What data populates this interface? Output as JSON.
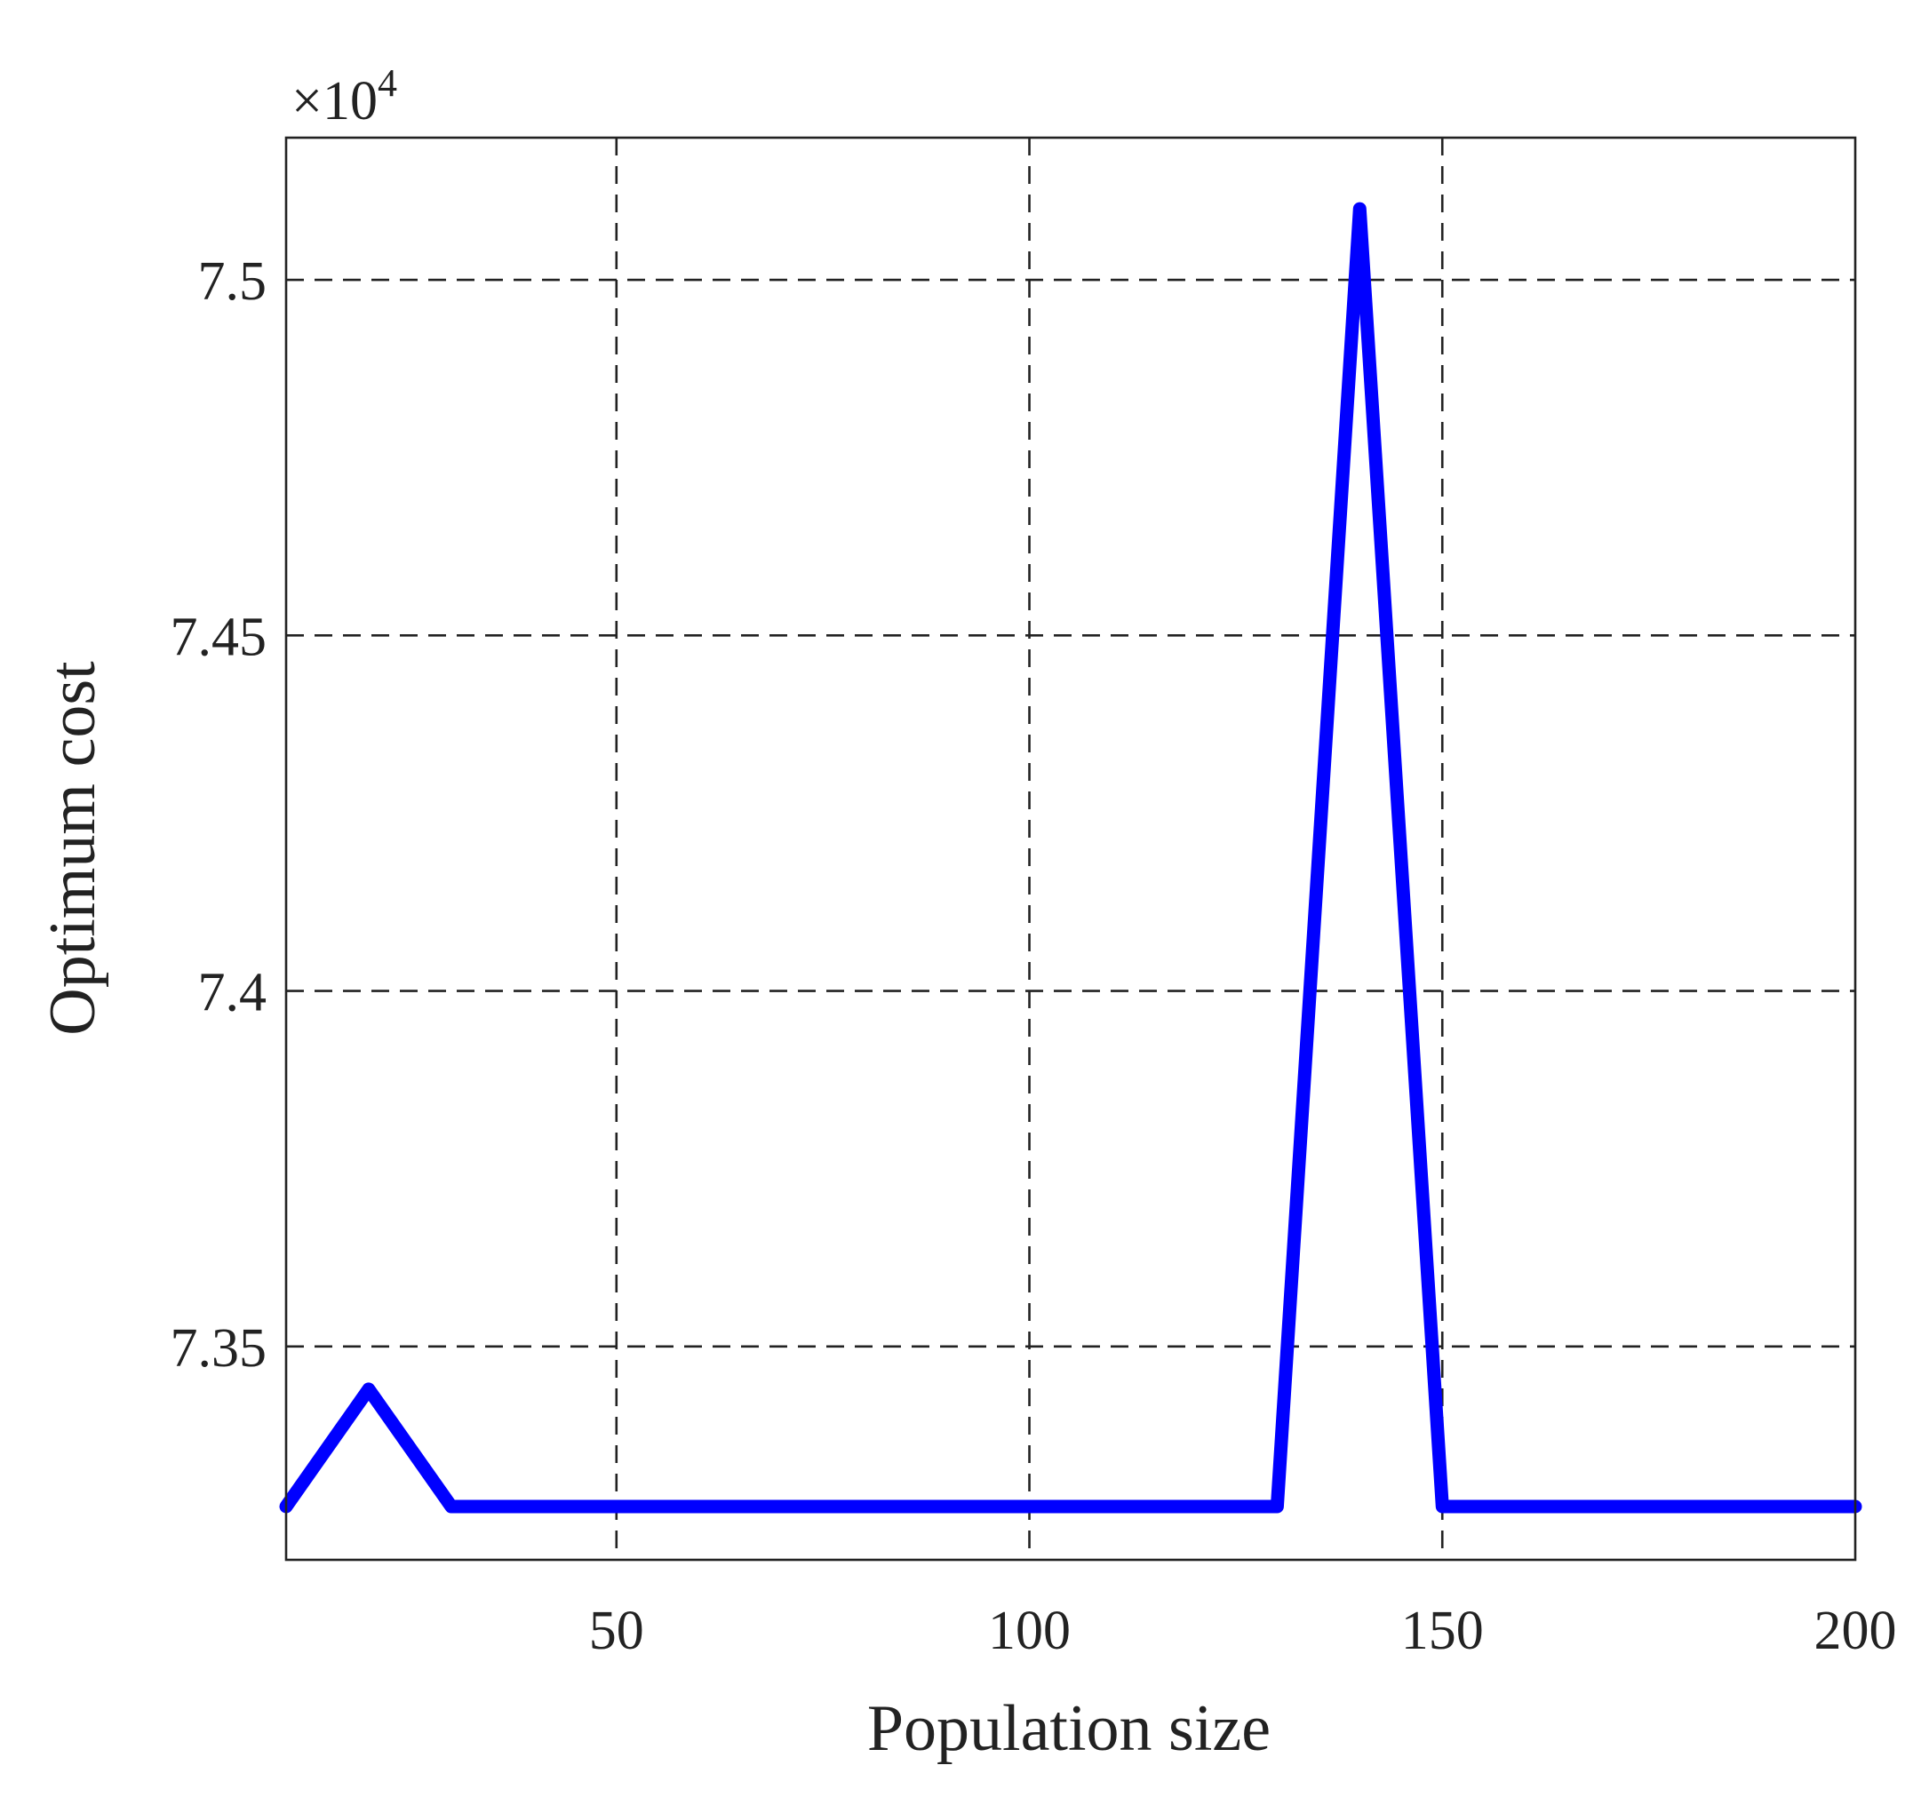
{
  "chart_data": {
    "type": "line",
    "title": "",
    "xlabel": "Population size",
    "ylabel": "Optimum cost",
    "y_exponent_label": "×10",
    "y_exponent": "4",
    "xlim": [
      10,
      200
    ],
    "ylim": [
      73.2,
      75.2
    ],
    "x_ticks": [
      50,
      100,
      150,
      200
    ],
    "x_tick_labels": [
      "50",
      "100",
      "150",
      "200"
    ],
    "y_ticks": [
      73.5,
      74.0,
      74.5,
      75.0
    ],
    "y_tick_labels": [
      "7.35",
      "7.4",
      "7.45",
      "7.5"
    ],
    "grid": true,
    "series": [
      {
        "color": "#0000ff",
        "x": [
          10,
          20,
          30,
          40,
          50,
          60,
          70,
          80,
          90,
          100,
          110,
          120,
          130,
          140,
          150,
          160,
          170,
          180,
          190,
          200
        ],
        "y": [
          73.275,
          73.44,
          73.275,
          73.275,
          73.275,
          73.275,
          73.275,
          73.275,
          73.275,
          73.275,
          73.275,
          73.275,
          73.275,
          75.1,
          73.275,
          73.275,
          73.275,
          73.275,
          73.275,
          73.275
        ]
      }
    ]
  }
}
